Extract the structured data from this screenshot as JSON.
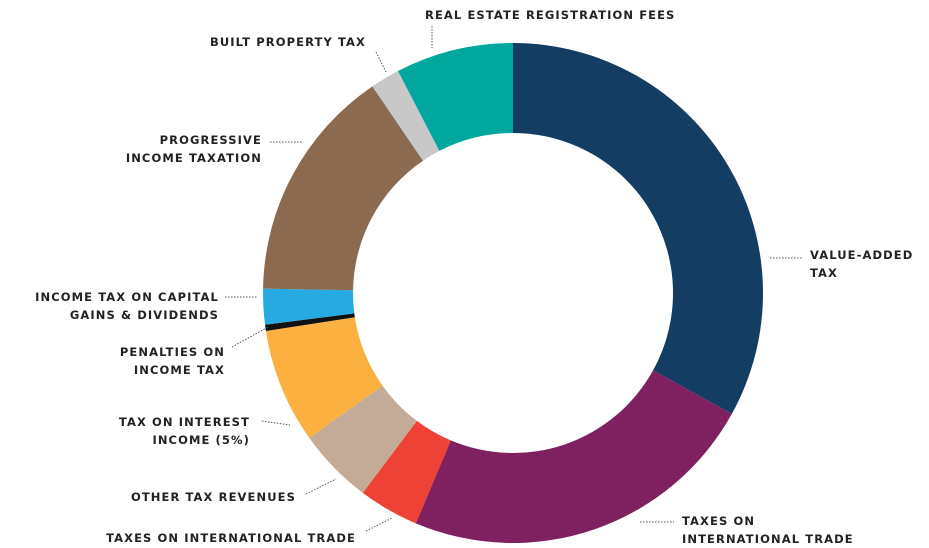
{
  "chart_data": {
    "type": "donut",
    "categories": [
      "VALUE-ADDED\nTAX",
      "TAXES ON\nINTERNATIONAL TRADE",
      "TAXES ON INTERNATIONAL TRADE",
      "OTHER TAX REVENUES",
      "TAX ON INTEREST\nINCOME (5%)",
      "PENALTIES ON\nINCOME TAX",
      "INCOME TAX ON CAPITAL\nGAINS & DIVIDENDS",
      "PROGRESSIVE\nINCOME TAXATION",
      "BUILT PROPERTY TAX",
      "REAL ESTATE REGISTRATION FEES"
    ],
    "values": [
      33,
      23.3,
      3.9,
      4.9,
      7.4,
      0.4,
      2.3,
      15.2,
      1.9,
      7.6
    ],
    "colors": [
      "#143d63",
      "#7f2160",
      "#ee4236",
      "#c4ab97",
      "#fbb040",
      "#111111",
      "#27aae1",
      "#8b6a4f",
      "#c8c8c8",
      "#00a79d"
    ]
  }
}
